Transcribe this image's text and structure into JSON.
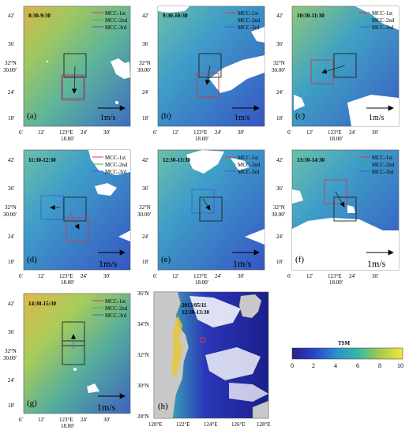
{
  "panels": [
    {
      "letter": "(a)",
      "time": "8:30-9:30",
      "scale_label": "1m/s"
    },
    {
      "letter": "(b)",
      "time": "9:30-10:30",
      "scale_label": "1m/s"
    },
    {
      "letter": "(c)",
      "time": "10:30-11:30",
      "scale_label": "1m/s"
    },
    {
      "letter": "(d)",
      "time": "11:30-12:30",
      "scale_label": "1m/s"
    },
    {
      "letter": "(e)",
      "time": "12:30-13:30",
      "scale_label": "1m/s"
    },
    {
      "letter": "(f)",
      "time": "13:30-14:30",
      "scale_label": "1m/s"
    },
    {
      "letter": "(g)",
      "time": "14:30-15:30",
      "scale_label": "1m/s"
    }
  ],
  "legend": {
    "items": [
      {
        "label": "MCC-1st",
        "color": "#e8323c"
      },
      {
        "label": "MCC-2nd",
        "color": "#2fb84a"
      },
      {
        "label": "MCC-3rd",
        "color": "#3a5fd8"
      }
    ]
  },
  "small_axes": {
    "y_ticks": [
      "42'",
      "36'",
      "32°N",
      "30.00'",
      "24'",
      "18'"
    ],
    "x_ticks": [
      "6'",
      "12'",
      "123°E",
      "24'",
      "30'"
    ],
    "x_sub": "18.00'"
  },
  "overview": {
    "letter": "(h)",
    "date": "2013/05/11",
    "time": "12:30-13:30",
    "y_ticks": [
      "36°N",
      "34°N",
      "32°N",
      "30°N",
      "28°N"
    ],
    "x_ticks": [
      "120°E",
      "122°E",
      "124°E",
      "126°E",
      "128°E"
    ]
  },
  "colorbar": {
    "title": "TSM",
    "ticks": [
      "0",
      "2",
      "4",
      "6",
      "8",
      "10"
    ]
  }
}
